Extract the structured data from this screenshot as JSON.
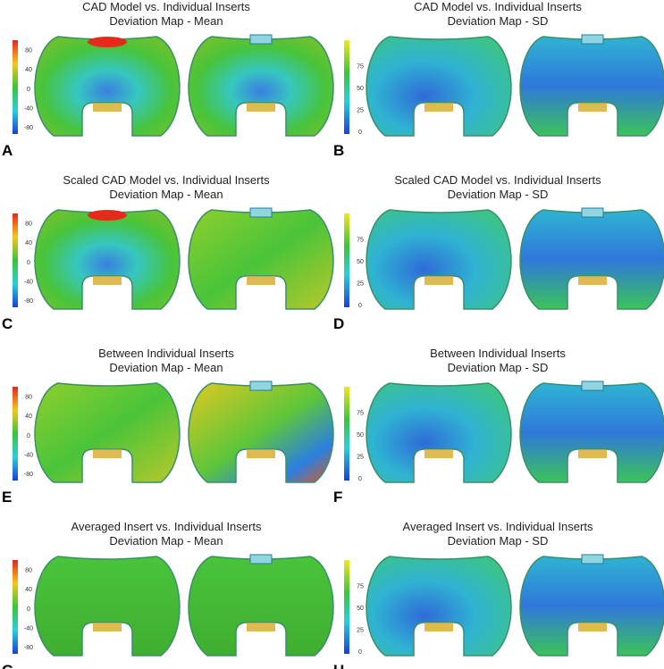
{
  "panels": [
    {
      "letter": "A",
      "title": [
        "CAD Model vs. Individual Inserts",
        "Deviation Map - Mean"
      ],
      "ticks": [
        80,
        40,
        0,
        -40,
        -80
      ]
    },
    {
      "letter": "B",
      "title": [
        "CAD Model vs. Individual Inserts",
        "Deviation Map - SD"
      ],
      "ticks": [
        75,
        50,
        25,
        0
      ]
    },
    {
      "letter": "C",
      "title": [
        "Scaled CAD Model vs. Individual Inserts",
        "Deviation Map - Mean"
      ],
      "ticks": [
        80,
        40,
        0,
        -40,
        -80
      ]
    },
    {
      "letter": "D",
      "title": [
        "Scaled CAD Model vs. Individual Inserts",
        "Deviation Map - SD"
      ],
      "ticks": [
        75,
        50,
        25,
        0
      ]
    },
    {
      "letter": "E",
      "title": [
        "Between Individual Inserts",
        "Deviation Map - Mean"
      ],
      "ticks": [
        80,
        40,
        0,
        -40,
        -80
      ]
    },
    {
      "letter": "F",
      "title": [
        "Between Individual Inserts",
        "Deviation Map - SD"
      ],
      "ticks": [
        75,
        50,
        25,
        0
      ]
    },
    {
      "letter": "G",
      "title": [
        "Averaged Insert vs. Individual Inserts",
        "Deviation Map - Mean"
      ],
      "ticks": [
        80,
        40,
        0,
        -40,
        -80
      ]
    },
    {
      "letter": "H",
      "title": [
        "Averaged Insert vs. Individual Inserts",
        "Deviation Map - SD"
      ],
      "ticks": [
        75,
        50,
        25,
        0
      ]
    }
  ]
}
